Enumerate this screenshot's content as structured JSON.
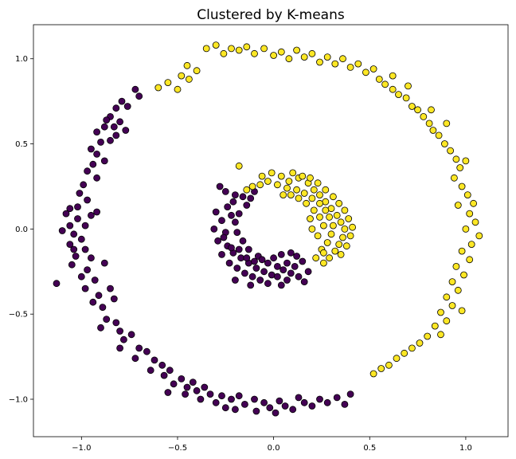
{
  "chart_data": {
    "type": "scatter",
    "title": "Clustered by K-means",
    "xlabel": "",
    "ylabel": "",
    "xlim": [
      -1.25,
      1.22
    ],
    "ylim": [
      -1.22,
      1.2
    ],
    "xticks": [
      -1.0,
      -0.5,
      0.0,
      0.5,
      1.0
    ],
    "xtick_labels": [
      "−1.0",
      "−0.5",
      "0.0",
      "0.5",
      "1.0"
    ],
    "yticks": [
      -1.0,
      -0.5,
      0.0,
      0.5,
      1.0
    ],
    "ytick_labels": [
      "−1.0",
      "−0.5",
      "0.0",
      "0.5",
      "1.0"
    ],
    "grid": false,
    "legend": "none",
    "clusters": [
      {
        "color": "#440154",
        "edge": "#000000",
        "description_points": "outer ring and inner ring, left/bottom side"
      },
      {
        "color": "#fde725",
        "edge": "#000000",
        "description_points": "outer ring and inner ring, top/right side"
      }
    ],
    "series": [
      {
        "color": "#440154",
        "points": [
          [
            -0.72,
            0.82
          ],
          [
            -0.7,
            0.78
          ],
          [
            -0.76,
            0.72
          ],
          [
            -0.79,
            0.75
          ],
          [
            -0.82,
            0.71
          ],
          [
            -0.85,
            0.66
          ],
          [
            -0.8,
            0.63
          ],
          [
            -0.77,
            0.58
          ],
          [
            -0.83,
            0.6
          ],
          [
            -0.88,
            0.6
          ],
          [
            -0.92,
            0.57
          ],
          [
            -0.9,
            0.51
          ],
          [
            -0.85,
            0.52
          ],
          [
            -0.82,
            0.55
          ],
          [
            -0.95,
            0.47
          ],
          [
            -0.92,
            0.44
          ],
          [
            -0.88,
            0.4
          ],
          [
            -0.94,
            0.38
          ],
          [
            -0.97,
            0.34
          ],
          [
            -0.92,
            0.3
          ],
          [
            -0.99,
            0.26
          ],
          [
            -1.01,
            0.21
          ],
          [
            -0.97,
            0.17
          ],
          [
            -1.02,
            0.13
          ],
          [
            -1.06,
            0.12
          ],
          [
            -1.08,
            0.09
          ],
          [
            -1.02,
            0.06
          ],
          [
            -0.95,
            0.08
          ],
          [
            -0.92,
            0.1
          ],
          [
            -1.06,
            0.02
          ],
          [
            -1.1,
            -0.01
          ],
          [
            -1.04,
            -0.03
          ],
          [
            -1.0,
            -0.06
          ],
          [
            -1.06,
            -0.09
          ],
          [
            -0.98,
            -0.12
          ],
          [
            -1.03,
            -0.16
          ],
          [
            -0.95,
            -0.17
          ],
          [
            -1.05,
            -0.21
          ],
          [
            -0.97,
            -0.24
          ],
          [
            -1.0,
            -0.28
          ],
          [
            -1.13,
            -0.32
          ],
          [
            -0.93,
            -0.3
          ],
          [
            -0.98,
            -0.35
          ],
          [
            -0.91,
            -0.39
          ],
          [
            -0.94,
            -0.43
          ],
          [
            -0.85,
            -0.35
          ],
          [
            -0.83,
            -0.41
          ],
          [
            -0.89,
            -0.46
          ],
          [
            -0.87,
            -0.53
          ],
          [
            -0.82,
            -0.55
          ],
          [
            -0.9,
            -0.58
          ],
          [
            -0.8,
            -0.6
          ],
          [
            -0.78,
            -0.65
          ],
          [
            -0.74,
            -0.62
          ],
          [
            -0.8,
            -0.7
          ],
          [
            -0.7,
            -0.7
          ],
          [
            -0.66,
            -0.72
          ],
          [
            -0.72,
            -0.76
          ],
          [
            -0.62,
            -0.77
          ],
          [
            -0.58,
            -0.8
          ],
          [
            -0.64,
            -0.83
          ],
          [
            -0.57,
            -0.86
          ],
          [
            -0.54,
            -0.83
          ],
          [
            -0.48,
            -0.88
          ],
          [
            -0.52,
            -0.91
          ],
          [
            -0.45,
            -0.93
          ],
          [
            -0.42,
            -0.9
          ],
          [
            -0.46,
            -0.97
          ],
          [
            -0.4,
            -0.95
          ],
          [
            -0.36,
            -0.93
          ],
          [
            -0.38,
            -1.0
          ],
          [
            -0.33,
            -0.97
          ],
          [
            -0.3,
            -1.02
          ],
          [
            -0.27,
            -0.98
          ],
          [
            -0.25,
            -1.05
          ],
          [
            -0.22,
            -1.0
          ],
          [
            -0.18,
            -0.98
          ],
          [
            -0.2,
            -1.06
          ],
          [
            -0.15,
            -1.03
          ],
          [
            -0.1,
            -1.0
          ],
          [
            -0.09,
            -1.07
          ],
          [
            -0.05,
            -1.02
          ],
          [
            -0.02,
            -1.05
          ],
          [
            0.01,
            -1.08
          ],
          [
            0.03,
            -1.01
          ],
          [
            0.06,
            -1.04
          ],
          [
            0.1,
            -1.06
          ],
          [
            0.13,
            -0.99
          ],
          [
            0.16,
            -1.02
          ],
          [
            0.2,
            -1.04
          ],
          [
            0.24,
            -1.0
          ],
          [
            0.28,
            -1.02
          ],
          [
            0.33,
            -0.99
          ],
          [
            0.37,
            -1.03
          ],
          [
            0.4,
            -0.97
          ],
          [
            -0.55,
            -0.96
          ],
          [
            -0.88,
            -0.2
          ],
          [
            -1.04,
            -0.12
          ],
          [
            -0.98,
            0.02
          ],
          [
            -0.87,
            0.64
          ],
          [
            -0.28,
            0.25
          ],
          [
            -0.25,
            0.22
          ],
          [
            -0.2,
            0.2
          ],
          [
            -0.24,
            0.13
          ],
          [
            -0.3,
            0.1
          ],
          [
            -0.27,
            0.05
          ],
          [
            -0.31,
            0.0
          ],
          [
            -0.25,
            -0.02
          ],
          [
            -0.29,
            -0.07
          ],
          [
            -0.24,
            -0.1
          ],
          [
            -0.27,
            -0.15
          ],
          [
            -0.21,
            -0.14
          ],
          [
            -0.23,
            -0.2
          ],
          [
            -0.17,
            -0.17
          ],
          [
            -0.19,
            -0.23
          ],
          [
            -0.13,
            -0.2
          ],
          [
            -0.15,
            -0.26
          ],
          [
            -0.09,
            -0.23
          ],
          [
            -0.11,
            -0.28
          ],
          [
            -0.05,
            -0.25
          ],
          [
            -0.07,
            -0.3
          ],
          [
            -0.01,
            -0.27
          ],
          [
            -0.03,
            -0.32
          ],
          [
            0.02,
            -0.28
          ],
          [
            0.05,
            -0.24
          ],
          [
            0.07,
            -0.3
          ],
          [
            0.09,
            -0.26
          ],
          [
            0.11,
            -0.22
          ],
          [
            0.13,
            -0.28
          ],
          [
            0.15,
            -0.19
          ],
          [
            0.12,
            -0.16
          ],
          [
            0.07,
            -0.2
          ],
          [
            0.02,
            -0.22
          ],
          [
            -0.03,
            -0.2
          ],
          [
            -0.08,
            -0.16
          ],
          [
            -0.13,
            -0.12
          ],
          [
            -0.16,
            -0.07
          ],
          [
            -0.19,
            -0.02
          ],
          [
            -0.2,
            0.04
          ],
          [
            -0.18,
            0.09
          ],
          [
            -0.14,
            0.14
          ],
          [
            -0.12,
            0.18
          ],
          [
            -0.1,
            0.22
          ],
          [
            -0.16,
            0.19
          ],
          [
            -0.21,
            0.16
          ],
          [
            -0.22,
            0.08
          ],
          [
            -0.26,
            -0.05
          ],
          [
            -0.22,
            -0.11
          ],
          [
            -0.18,
            -0.12
          ],
          [
            -0.14,
            -0.17
          ],
          [
            -0.1,
            -0.19
          ],
          [
            -0.06,
            -0.18
          ],
          [
            0.0,
            -0.17
          ],
          [
            0.04,
            -0.15
          ],
          [
            0.09,
            -0.14
          ],
          [
            0.18,
            -0.25
          ],
          [
            0.16,
            -0.31
          ],
          [
            0.04,
            -0.33
          ],
          [
            -0.12,
            -0.33
          ],
          [
            -0.2,
            -0.3
          ]
        ]
      },
      {
        "color": "#fde725",
        "points": [
          [
            -0.35,
            1.06
          ],
          [
            -0.3,
            1.08
          ],
          [
            -0.26,
            1.03
          ],
          [
            -0.22,
            1.06
          ],
          [
            -0.18,
            1.05
          ],
          [
            -0.14,
            1.07
          ],
          [
            -0.1,
            1.03
          ],
          [
            -0.05,
            1.06
          ],
          [
            0.0,
            1.02
          ],
          [
            0.04,
            1.04
          ],
          [
            0.08,
            1.0
          ],
          [
            0.12,
            1.05
          ],
          [
            0.16,
            1.01
          ],
          [
            0.2,
            1.03
          ],
          [
            0.24,
            0.98
          ],
          [
            0.28,
            1.01
          ],
          [
            0.32,
            0.97
          ],
          [
            0.36,
            1.0
          ],
          [
            0.4,
            0.95
          ],
          [
            0.44,
            0.97
          ],
          [
            0.48,
            0.92
          ],
          [
            0.52,
            0.94
          ],
          [
            0.55,
            0.88
          ],
          [
            0.58,
            0.85
          ],
          [
            0.62,
            0.82
          ],
          [
            0.65,
            0.79
          ],
          [
            0.69,
            0.77
          ],
          [
            0.72,
            0.72
          ],
          [
            0.75,
            0.7
          ],
          [
            0.78,
            0.66
          ],
          [
            0.81,
            0.62
          ],
          [
            0.83,
            0.58
          ],
          [
            0.86,
            0.55
          ],
          [
            0.89,
            0.5
          ],
          [
            0.92,
            0.46
          ],
          [
            0.95,
            0.41
          ],
          [
            0.97,
            0.36
          ],
          [
            0.94,
            0.3
          ],
          [
            0.98,
            0.25
          ],
          [
            1.01,
            0.2
          ],
          [
            0.96,
            0.14
          ],
          [
            1.02,
            0.09
          ],
          [
            1.05,
            0.04
          ],
          [
            1.0,
            0.0
          ],
          [
            1.07,
            -0.04
          ],
          [
            1.03,
            -0.09
          ],
          [
            0.98,
            -0.13
          ],
          [
            1.02,
            -0.18
          ],
          [
            0.95,
            -0.22
          ],
          [
            0.99,
            -0.27
          ],
          [
            0.93,
            -0.31
          ],
          [
            0.96,
            -0.36
          ],
          [
            0.9,
            -0.4
          ],
          [
            0.93,
            -0.45
          ],
          [
            0.87,
            -0.49
          ],
          [
            0.9,
            -0.54
          ],
          [
            0.84,
            -0.57
          ],
          [
            0.87,
            -0.62
          ],
          [
            0.8,
            -0.63
          ],
          [
            0.76,
            -0.67
          ],
          [
            0.72,
            -0.7
          ],
          [
            0.68,
            -0.73
          ],
          [
            0.64,
            -0.76
          ],
          [
            0.6,
            -0.8
          ],
          [
            0.56,
            -0.82
          ],
          [
            0.52,
            -0.85
          ],
          [
            -0.45,
            0.96
          ],
          [
            -0.4,
            0.93
          ],
          [
            -0.48,
            0.9
          ],
          [
            -0.55,
            0.86
          ],
          [
            -0.6,
            0.83
          ],
          [
            -0.5,
            0.82
          ],
          [
            -0.44,
            0.88
          ],
          [
            0.62,
            0.9
          ],
          [
            0.7,
            0.84
          ],
          [
            0.82,
            0.7
          ],
          [
            0.9,
            0.62
          ],
          [
            1.0,
            0.4
          ],
          [
            1.04,
            0.15
          ],
          [
            0.98,
            -0.48
          ],
          [
            0.08,
            0.28
          ],
          [
            0.13,
            0.3
          ],
          [
            0.18,
            0.27
          ],
          [
            0.21,
            0.23
          ],
          [
            0.24,
            0.2
          ],
          [
            0.27,
            0.16
          ],
          [
            0.3,
            0.12
          ],
          [
            0.33,
            0.08
          ],
          [
            0.35,
            0.04
          ],
          [
            0.37,
            0.0
          ],
          [
            0.36,
            -0.05
          ],
          [
            0.34,
            -0.09
          ],
          [
            0.32,
            -0.13
          ],
          [
            0.29,
            -0.17
          ],
          [
            0.26,
            -0.2
          ],
          [
            0.22,
            -0.17
          ],
          [
            0.25,
            -0.12
          ],
          [
            0.28,
            -0.08
          ],
          [
            0.3,
            -0.03
          ],
          [
            0.31,
            0.02
          ],
          [
            0.29,
            0.07
          ],
          [
            0.27,
            0.11
          ],
          [
            0.24,
            0.15
          ],
          [
            0.2,
            0.18
          ],
          [
            0.16,
            0.21
          ],
          [
            0.12,
            0.23
          ],
          [
            0.07,
            0.24
          ],
          [
            0.02,
            0.26
          ],
          [
            -0.03,
            0.28
          ],
          [
            -0.07,
            0.26
          ],
          [
            -0.11,
            0.25
          ],
          [
            -0.14,
            0.23
          ],
          [
            -0.06,
            0.31
          ],
          [
            -0.01,
            0.33
          ],
          [
            0.04,
            0.31
          ],
          [
            0.1,
            0.33
          ],
          [
            0.15,
            0.31
          ],
          [
            0.19,
            0.3
          ],
          [
            0.23,
            0.27
          ],
          [
            0.27,
            0.23
          ],
          [
            0.31,
            0.19
          ],
          [
            0.34,
            0.15
          ],
          [
            0.37,
            0.11
          ],
          [
            0.39,
            0.06
          ],
          [
            0.41,
            0.01
          ],
          [
            0.4,
            -0.04
          ],
          [
            0.38,
            -0.1
          ],
          [
            0.35,
            -0.15
          ],
          [
            0.23,
            -0.04
          ],
          [
            0.2,
            0.0
          ],
          [
            0.19,
            0.06
          ],
          [
            0.21,
            0.11
          ],
          [
            0.17,
            0.15
          ],
          [
            0.13,
            0.18
          ],
          [
            0.09,
            0.2
          ],
          [
            0.05,
            0.2
          ],
          [
            0.24,
            0.07
          ],
          [
            0.26,
            0.02
          ],
          [
            0.26,
            -0.14
          ],
          [
            -0.18,
            0.37
          ]
        ]
      }
    ]
  }
}
